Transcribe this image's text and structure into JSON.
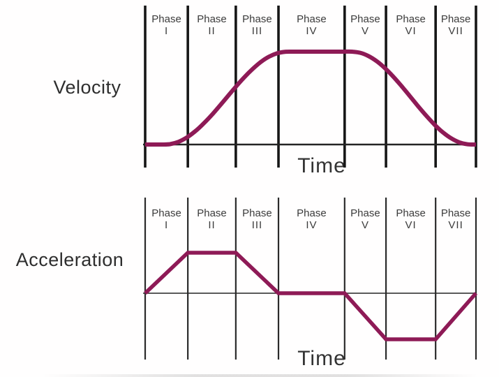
{
  "figure": {
    "background_color": "#fffefe",
    "curve_color": "#8E1A56",
    "phase_line_color": "#161616",
    "axis_line_color": "#242424",
    "label_text_color": "#2e2e2e",
    "phase_text_color": "#3b3b3b"
  },
  "chart_data": [
    {
      "id": "velocity",
      "type": "line",
      "ylabel": "Velocity",
      "xlabel": "Time",
      "legend": "none",
      "grid": "vertical phase divider lines only, no tick labels",
      "x_range": [
        0,
        1
      ],
      "y_range": [
        0,
        1
      ],
      "phase_labels": [
        {
          "word": "Phase",
          "numeral": "I"
        },
        {
          "word": "Phase",
          "numeral": "II"
        },
        {
          "word": "Phase",
          "numeral": "III"
        },
        {
          "word": "Phase",
          "numeral": "IV"
        },
        {
          "word": "Phase",
          "numeral": "V"
        },
        {
          "word": "Phase",
          "numeral": "VI"
        },
        {
          "word": "Phase",
          "numeral": "VII"
        }
      ],
      "phase_boundaries_frac": [
        0,
        0.129,
        0.274,
        0.403,
        0.603,
        0.728,
        0.878,
        1.0
      ],
      "description": "S-curve velocity profile: zero in Phase I, smooth S-shaped rise through Phases II-III, constant maximum across Phase IV, smooth S-shaped fall through Phases V-VI, settling to zero in Phase VII",
      "points": [
        [
          0,
          0
        ],
        [
          0.025,
          0
        ],
        [
          0.05,
          0
        ],
        [
          0.075,
          0.004
        ],
        [
          0.1,
          0.028
        ],
        [
          0.125,
          0.074
        ],
        [
          0.15,
          0.139
        ],
        [
          0.175,
          0.22
        ],
        [
          0.2,
          0.313
        ],
        [
          0.225,
          0.415
        ],
        [
          0.25,
          0.521
        ],
        [
          0.275,
          0.626
        ],
        [
          0.3,
          0.725
        ],
        [
          0.325,
          0.814
        ],
        [
          0.35,
          0.89
        ],
        [
          0.375,
          0.947
        ],
        [
          0.4,
          0.984
        ],
        [
          0.425,
          0.999
        ],
        [
          0.45,
          1
        ],
        [
          0.475,
          1
        ],
        [
          0.5,
          1
        ],
        [
          0.525,
          1
        ],
        [
          0.55,
          1
        ],
        [
          0.575,
          1
        ],
        [
          0.6,
          1
        ],
        [
          0.625,
          1
        ],
        [
          0.65,
          0.988
        ],
        [
          0.675,
          0.953
        ],
        [
          0.7,
          0.897
        ],
        [
          0.725,
          0.822
        ],
        [
          0.75,
          0.731
        ],
        [
          0.775,
          0.629
        ],
        [
          0.8,
          0.522
        ],
        [
          0.825,
          0.413
        ],
        [
          0.85,
          0.309
        ],
        [
          0.875,
          0.213
        ],
        [
          0.9,
          0.131
        ],
        [
          0.925,
          0.067
        ],
        [
          0.95,
          0.023
        ],
        [
          0.975,
          0.002
        ],
        [
          1,
          0
        ]
      ]
    },
    {
      "id": "acceleration",
      "type": "line",
      "ylabel": "Acceleration",
      "xlabel": "Time",
      "legend": "none",
      "grid": "vertical phase divider lines only, no tick labels",
      "x_range": [
        0,
        1
      ],
      "y_range": [
        -1,
        1
      ],
      "phase_labels": [
        {
          "word": "Phase",
          "numeral": "I"
        },
        {
          "word": "Phase",
          "numeral": "II"
        },
        {
          "word": "Phase",
          "numeral": "III"
        },
        {
          "word": "Phase",
          "numeral": "IV"
        },
        {
          "word": "Phase",
          "numeral": "V"
        },
        {
          "word": "Phase",
          "numeral": "VI"
        },
        {
          "word": "Phase",
          "numeral": "VII"
        }
      ],
      "phase_boundaries_frac": [
        0,
        0.129,
        0.274,
        0.403,
        0.603,
        0.728,
        0.878,
        1.0
      ],
      "description": "Trapezoidal acceleration profile: ramp up in Phase I, constant positive in Phase II, ramp to zero in Phase III, zero across Phase IV, ramp negative in Phase V, constant negative in Phase VI, ramp back to zero in Phase VII",
      "points": [
        [
          0,
          0
        ],
        [
          0.129,
          1
        ],
        [
          0.274,
          1
        ],
        [
          0.403,
          0
        ],
        [
          0.603,
          0
        ],
        [
          0.728,
          -1
        ],
        [
          0.878,
          -1
        ],
        [
          1,
          0
        ]
      ]
    }
  ]
}
